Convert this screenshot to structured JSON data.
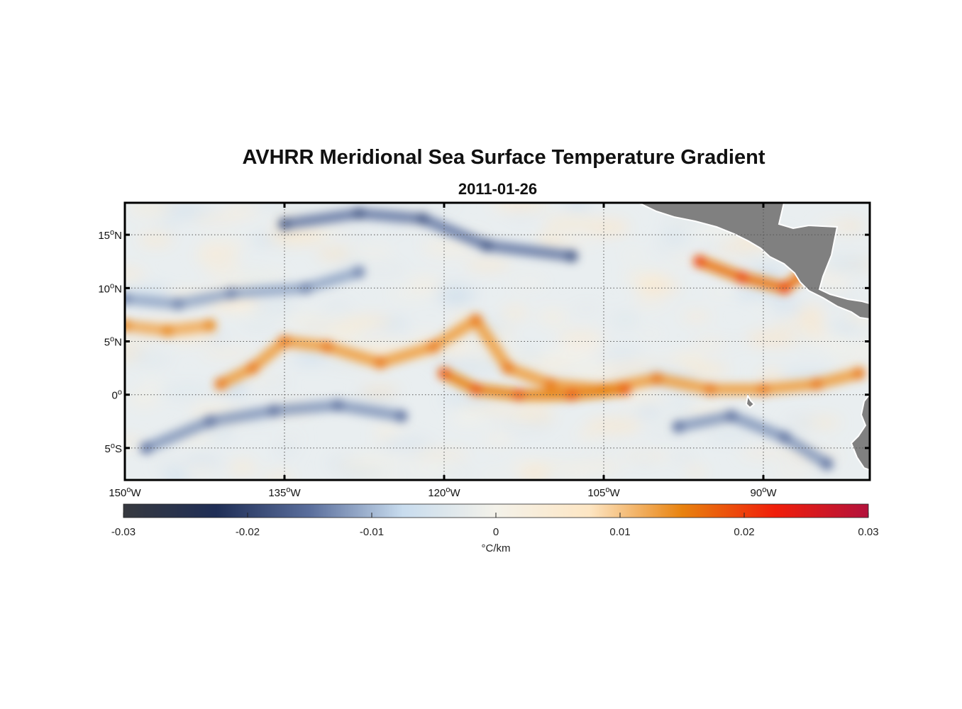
{
  "title": "AVHRR Meridional Sea Surface Temperature Gradient",
  "subtitle": "2011-01-26",
  "map": {
    "lon_range": [
      -150,
      -80
    ],
    "lat_range": [
      -8,
      18
    ],
    "lat_ticks": [
      {
        "value": 15,
        "label": "15",
        "hemi": "N"
      },
      {
        "value": 10,
        "label": "10",
        "hemi": "N"
      },
      {
        "value": 5,
        "label": "5",
        "hemi": "N"
      },
      {
        "value": 0,
        "label": "0",
        "hemi": ""
      },
      {
        "value": -5,
        "label": "5",
        "hemi": "S"
      }
    ],
    "lon_ticks": [
      {
        "value": -150,
        "label": "150",
        "hemi": "W"
      },
      {
        "value": -135,
        "label": "135",
        "hemi": "W"
      },
      {
        "value": -120,
        "label": "120",
        "hemi": "W"
      },
      {
        "value": -105,
        "label": "105",
        "hemi": "W"
      },
      {
        "value": -90,
        "label": "90",
        "hemi": "W"
      }
    ],
    "land_color": "#808080",
    "ocean_base_color": "#e9eef0"
  },
  "colorbar": {
    "range": [
      -0.03,
      0.03
    ],
    "ticks": [
      {
        "value": -0.03,
        "label": "-0.03"
      },
      {
        "value": -0.02,
        "label": "-0.02"
      },
      {
        "value": -0.01,
        "label": "-0.01"
      },
      {
        "value": 0,
        "label": "0"
      },
      {
        "value": 0.01,
        "label": "0.01"
      },
      {
        "value": 0.02,
        "label": "0.02"
      },
      {
        "value": 0.03,
        "label": "0.03"
      }
    ],
    "unit_label": "°C/km",
    "colors": [
      "#36393f",
      "#1f2e56",
      "#5a6e9c",
      "#c8dcee",
      "#f4f2ea",
      "#fde6c4",
      "#e8820e",
      "#f01e0a",
      "#b3123c"
    ]
  },
  "features": [
    {
      "type": "positive",
      "name": "equatorial-front",
      "points": [
        [
          -141,
          1
        ],
        [
          -138,
          2.5
        ],
        [
          -135,
          5
        ],
        [
          -131,
          4.5
        ],
        [
          -126,
          3
        ],
        [
          -121,
          4.5
        ],
        [
          -117,
          7
        ],
        [
          -114,
          2.5
        ],
        [
          -110,
          1
        ],
        [
          -105,
          0.5
        ],
        [
          -100,
          1.5
        ],
        [
          -95,
          0.5
        ],
        [
          -90,
          0.5
        ],
        [
          -85,
          1
        ],
        [
          -81,
          2
        ]
      ],
      "value": 0.013
    },
    {
      "type": "positive",
      "name": "northern-front",
      "points": [
        [
          -150,
          6.5
        ],
        [
          -146,
          6
        ],
        [
          -142,
          6.5
        ]
      ],
      "value": 0.012
    },
    {
      "type": "positive",
      "name": "southern-equatorial-front",
      "points": [
        [
          -120,
          2
        ],
        [
          -117,
          0.5
        ],
        [
          -113,
          0
        ],
        [
          -108,
          0
        ],
        [
          -103,
          0.5
        ]
      ],
      "value": 0.015
    },
    {
      "type": "positive",
      "name": "coastal-front",
      "points": [
        [
          -96,
          12.5
        ],
        [
          -92,
          11
        ],
        [
          -88,
          10
        ],
        [
          -86,
          11.5
        ]
      ],
      "value": 0.016
    },
    {
      "type": "negative",
      "name": "north-cold-band",
      "points": [
        [
          -150,
          9
        ],
        [
          -145,
          8.5
        ],
        [
          -140,
          9.5
        ],
        [
          -133,
          10
        ],
        [
          -128,
          11.5
        ]
      ],
      "value": -0.011
    },
    {
      "type": "negative",
      "name": "south-cold-band",
      "points": [
        [
          -148,
          -5
        ],
        [
          -142,
          -2.5
        ],
        [
          -136,
          -1.5
        ],
        [
          -130,
          -1
        ],
        [
          -124,
          -2
        ]
      ],
      "value": -0.012
    },
    {
      "type": "negative",
      "name": "northern-cold-patches",
      "points": [
        [
          -135,
          16
        ],
        [
          -128,
          17
        ],
        [
          -122,
          16.5
        ],
        [
          -116,
          14
        ],
        [
          -108,
          13
        ]
      ],
      "value": -0.014
    },
    {
      "type": "negative",
      "name": "eastern-cold-band",
      "points": [
        [
          -98,
          -3
        ],
        [
          -93,
          -2
        ],
        [
          -88,
          -4
        ],
        [
          -84,
          -6.5
        ]
      ],
      "value": -0.012
    }
  ]
}
